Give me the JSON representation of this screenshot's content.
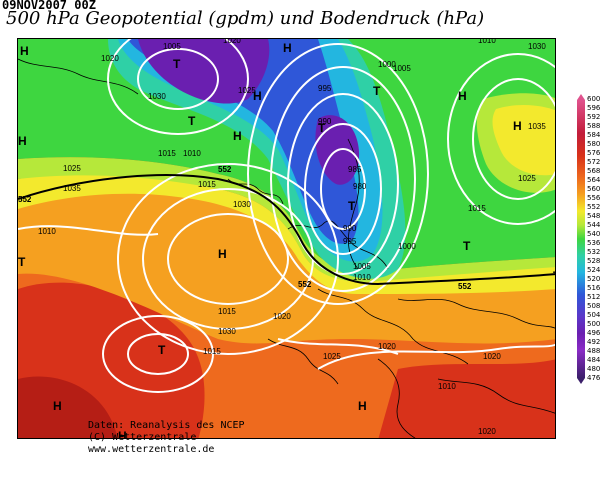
{
  "header": {
    "datetime": "09NOV2007 00Z",
    "title": "500 hPa Geopotential (gpdm) und Bodendruck (hPa)"
  },
  "map": {
    "high_label": "H",
    "low_label": "T",
    "isobar_labels": [
      "1005",
      "1020",
      "1000",
      "1020",
      "1010",
      "1030",
      "995",
      "1005",
      "990",
      "1035",
      "985",
      "980",
      "1030",
      "1025",
      "1015",
      "1010",
      "1025",
      "1035",
      "1030",
      "1015",
      "1015",
      "1010",
      "990",
      "995",
      "1000",
      "1005",
      "1010",
      "1020",
      "1015",
      "1030",
      "1015",
      "1025",
      "1025",
      "1020",
      "1020",
      "1010",
      "1020"
    ],
    "contour_labels_552": [
      "552",
      "552",
      "552",
      "552"
    ],
    "colors": {
      "purple": "#6a1fb0",
      "blue": "#2f57d8",
      "cyan": "#23b6e0",
      "teal": "#2fd0a6",
      "green": "#3ed640",
      "lime": "#b6e83a",
      "yellow": "#f3e92d",
      "orange": "#f5a020",
      "deep_orange": "#ee6a1e",
      "red": "#d8321a",
      "dark_red": "#b51e15",
      "isobar": "#ffffff",
      "coast": "#000000"
    }
  },
  "legend": {
    "labels": [
      "600",
      "596",
      "592",
      "588",
      "584",
      "580",
      "576",
      "572",
      "568",
      "564",
      "560",
      "556",
      "552",
      "548",
      "544",
      "540",
      "536",
      "532",
      "528",
      "524",
      "520",
      "516",
      "512",
      "508",
      "504",
      "500",
      "496",
      "492",
      "488",
      "484",
      "480",
      "476"
    ]
  },
  "credits": {
    "line1": "Daten: Reanalysis des NCEP",
    "line2": "(C) Wetterzentrale",
    "line3": "www.wetterzentrale.de"
  }
}
